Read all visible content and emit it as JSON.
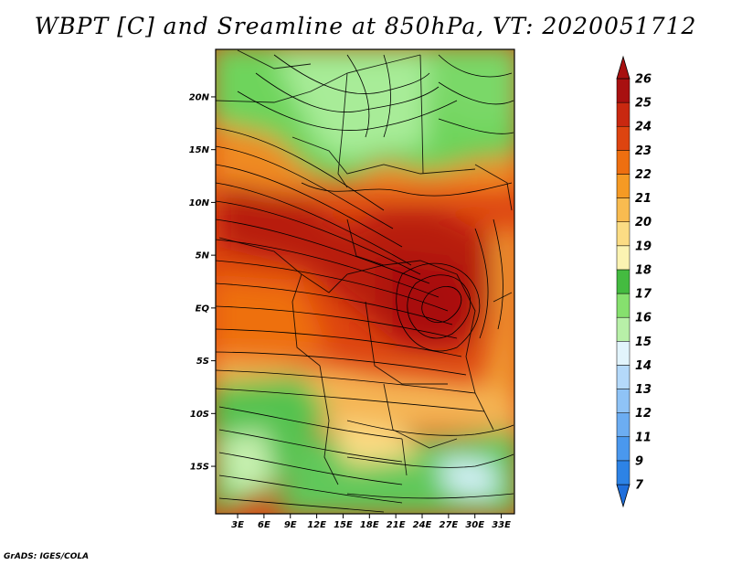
{
  "title": "WBPT [C] and Sreamline at 850hPa, VT: 2020051712",
  "credit": "GrADS: IGES/COLA",
  "map": {
    "lat_ticks": [
      "20N",
      "15N",
      "10N",
      "5N",
      "EQ",
      "5S",
      "10S",
      "15S"
    ],
    "lon_ticks": [
      "3E",
      "6E",
      "9E",
      "12E",
      "15E",
      "18E",
      "21E",
      "24E",
      "27E",
      "30E",
      "33E"
    ],
    "lat_values": [
      20,
      15,
      10,
      5,
      0,
      -5,
      -10,
      -15
    ],
    "lon_values": [
      3,
      6,
      9,
      12,
      15,
      18,
      21,
      24,
      27,
      30,
      33
    ],
    "lat_range": [
      -19.5,
      24.5
    ],
    "lon_range": [
      0.5,
      34.5
    ]
  },
  "colorbar": {
    "labels": [
      "7",
      "9",
      "11",
      "12",
      "13",
      "14",
      "15",
      "16",
      "17",
      "18",
      "19",
      "20",
      "21",
      "22",
      "23",
      "24",
      "25",
      "26"
    ],
    "colors": [
      "#1f6fdc",
      "#2d83e6",
      "#4a98ee",
      "#6cadf2",
      "#8fc3f6",
      "#b4d9fa",
      "#e2f4fc",
      "#b8f0a8",
      "#86e06e",
      "#44bb40",
      "#fbf3b2",
      "#fbdc84",
      "#f8bb50",
      "#f59a24",
      "#ee6f10",
      "#dd4410",
      "#c92810",
      "#a81010"
    ],
    "extend": "both"
  }
}
